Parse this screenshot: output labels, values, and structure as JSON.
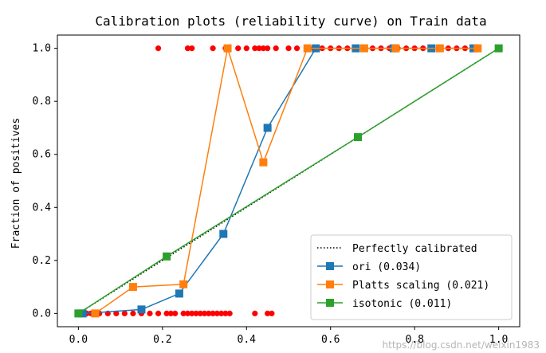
{
  "chart_data": {
    "type": "line",
    "title": "Calibration plots  (reliability curve) on Train data",
    "xlabel": "",
    "ylabel": "Fraction of positives",
    "xlim": [
      -0.05,
      1.05
    ],
    "ylim": [
      -0.05,
      1.05
    ],
    "xticks": [
      0.0,
      0.2,
      0.4,
      0.6,
      0.8,
      1.0
    ],
    "yticks": [
      0.0,
      0.2,
      0.4,
      0.6,
      0.8,
      1.0
    ],
    "xtick_labels": [
      "0.0",
      "0.2",
      "0.4",
      "0.6",
      "0.8",
      "1.0"
    ],
    "ytick_labels": [
      "0.0",
      "0.2",
      "0.4",
      "0.6",
      "0.8",
      "1.0"
    ],
    "grid": false,
    "legend_position": "lower right",
    "series": [
      {
        "name": "Perfectly calibrated",
        "style": "dotted",
        "color": "#000000",
        "x": [
          0,
          1
        ],
        "y": [
          0,
          1
        ]
      },
      {
        "name": "ori (0.034)",
        "color": "#1f77b4",
        "marker": "square",
        "x": [
          0.01,
          0.15,
          0.24,
          0.345,
          0.45,
          0.565,
          0.66,
          0.75,
          0.84,
          0.94
        ],
        "y": [
          0.0,
          0.015,
          0.075,
          0.3,
          0.7,
          1.0,
          1.0,
          1.0,
          1.0,
          1.0
        ]
      },
      {
        "name": "Platts scaling (0.021)",
        "color": "#ff7f0e",
        "marker": "square",
        "x": [
          0.04,
          0.13,
          0.25,
          0.355,
          0.44,
          0.545,
          0.68,
          0.755,
          0.86,
          0.95
        ],
        "y": [
          0.0,
          0.1,
          0.11,
          1.0,
          0.57,
          1.0,
          1.0,
          1.0,
          1.0,
          1.0
        ]
      },
      {
        "name": "isotonic (0.011)",
        "color": "#2ca02c",
        "marker": "square",
        "x": [
          0.0,
          0.21,
          0.665,
          1.0
        ],
        "y": [
          0.0,
          0.215,
          0.665,
          1.0
        ]
      }
    ],
    "scatter": {
      "color": "#ff0000",
      "x_at_one": [
        0.19,
        0.26,
        0.27,
        0.32,
        0.35,
        0.38,
        0.4,
        0.42,
        0.43,
        0.44,
        0.45,
        0.47,
        0.5,
        0.52,
        0.56,
        0.58,
        0.6,
        0.62,
        0.64,
        0.66,
        0.68,
        0.7,
        0.72,
        0.74,
        0.76,
        0.78,
        0.8,
        0.82,
        0.84,
        0.86,
        0.88,
        0.9,
        0.92,
        0.94
      ],
      "x_at_zero": [
        0.01,
        0.02,
        0.03,
        0.05,
        0.07,
        0.09,
        0.11,
        0.13,
        0.15,
        0.17,
        0.19,
        0.21,
        0.22,
        0.23,
        0.25,
        0.26,
        0.27,
        0.28,
        0.29,
        0.3,
        0.31,
        0.32,
        0.33,
        0.34,
        0.35,
        0.36,
        0.42,
        0.45,
        0.46
      ]
    }
  },
  "watermark": "https://blog.csdn.net/weixin1983"
}
